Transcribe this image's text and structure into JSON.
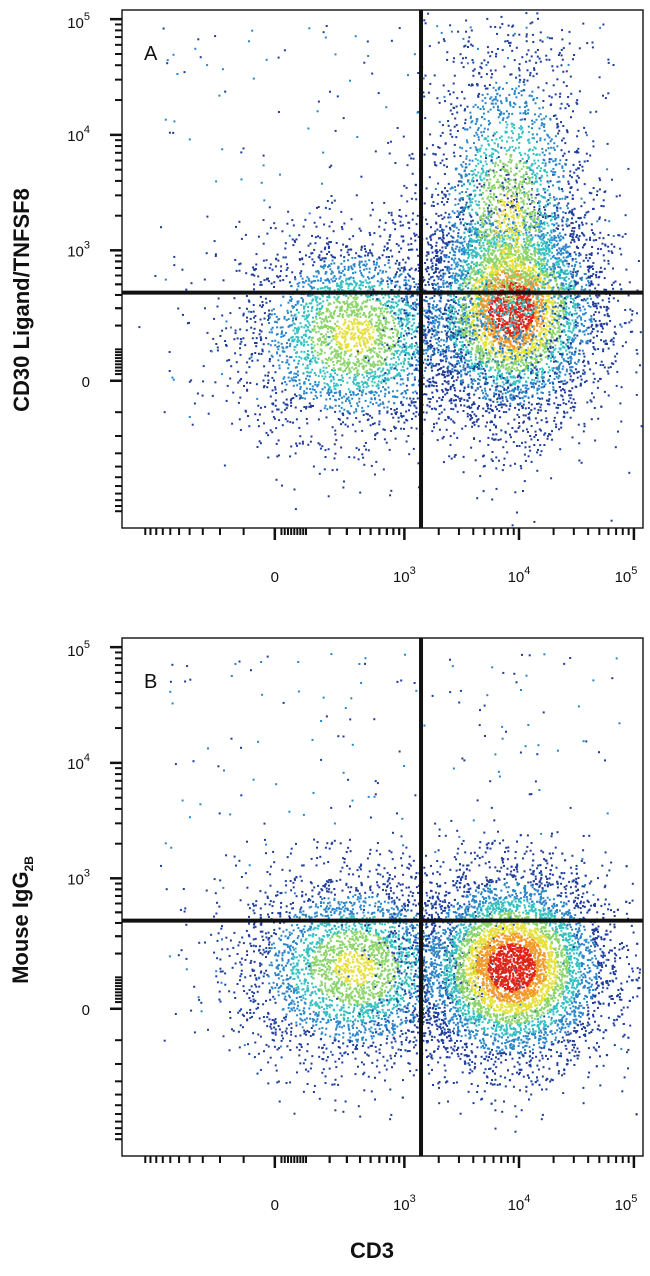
{
  "colors": {
    "density_scale": [
      "#1f3d9b",
      "#2a86c8",
      "#34c0c0",
      "#8bd46a",
      "#e6e03c",
      "#f29a2a",
      "#e02418"
    ],
    "gate": "#111111",
    "frame": "#111111"
  },
  "figure": {
    "xlabel": "CD3"
  },
  "panels": [
    {
      "letter": "A",
      "ylabel_parts": [
        "CD30 Ligand/TNFSF8"
      ],
      "x_ticks": [
        {
          "base": "0",
          "exp": ""
        },
        {
          "base": "10",
          "exp": "3"
        },
        {
          "base": "10",
          "exp": "4"
        },
        {
          "base": "10",
          "exp": "5"
        }
      ],
      "y_ticks": [
        {
          "base": "0",
          "exp": ""
        },
        {
          "base": "10",
          "exp": "3"
        },
        {
          "base": "10",
          "exp": "4"
        },
        {
          "base": "10",
          "exp": "5"
        }
      ]
    },
    {
      "letter": "B",
      "ylabel_parts": [
        "Mouse IgG",
        "2B"
      ],
      "x_ticks": [
        {
          "base": "0",
          "exp": ""
        },
        {
          "base": "10",
          "exp": "3"
        },
        {
          "base": "10",
          "exp": "4"
        },
        {
          "base": "10",
          "exp": "5"
        }
      ],
      "y_ticks": [
        {
          "base": "0",
          "exp": ""
        },
        {
          "base": "10",
          "exp": "3"
        },
        {
          "base": "10",
          "exp": "4"
        },
        {
          "base": "10",
          "exp": "5"
        }
      ]
    }
  ],
  "chart_data": [
    {
      "type": "scatter",
      "title": "A",
      "xlabel": "CD3",
      "ylabel": "CD30 Ligand/TNFSF8",
      "x_scale": "biexponential",
      "y_scale": "biexponential",
      "x_ticks": [
        "0",
        "10^3",
        "10^4",
        "10^5"
      ],
      "y_ticks": [
        "0",
        "10^3",
        "10^4",
        "10^5"
      ],
      "quadrant_gate": {
        "x": 1400,
        "y": 420
      },
      "populations": [
        {
          "center": [
            350,
            160
          ],
          "count": 3000,
          "spread": [
            0.2,
            0.18
          ]
        },
        {
          "center": [
            8500,
            300
          ],
          "count": 4500,
          "spread": [
            0.16,
            0.19
          ]
        },
        {
          "center": [
            8000,
            1600
          ],
          "count": 2600,
          "spread": [
            0.14,
            0.34
          ]
        }
      ]
    },
    {
      "type": "scatter",
      "title": "B",
      "xlabel": "CD3",
      "ylabel": "Mouse IgG2B",
      "x_scale": "biexponential",
      "y_scale": "biexponential",
      "x_ticks": [
        "0",
        "10^3",
        "10^4",
        "10^5"
      ],
      "y_ticks": [
        "0",
        "10^3",
        "10^4",
        "10^5"
      ],
      "quadrant_gate": {
        "x": 1400,
        "y": 420
      },
      "populations": [
        {
          "center": [
            350,
            140
          ],
          "count": 3200,
          "spread": [
            0.2,
            0.17
          ]
        },
        {
          "center": [
            8500,
            140
          ],
          "count": 6000,
          "spread": [
            0.17,
            0.17
          ]
        }
      ]
    }
  ]
}
